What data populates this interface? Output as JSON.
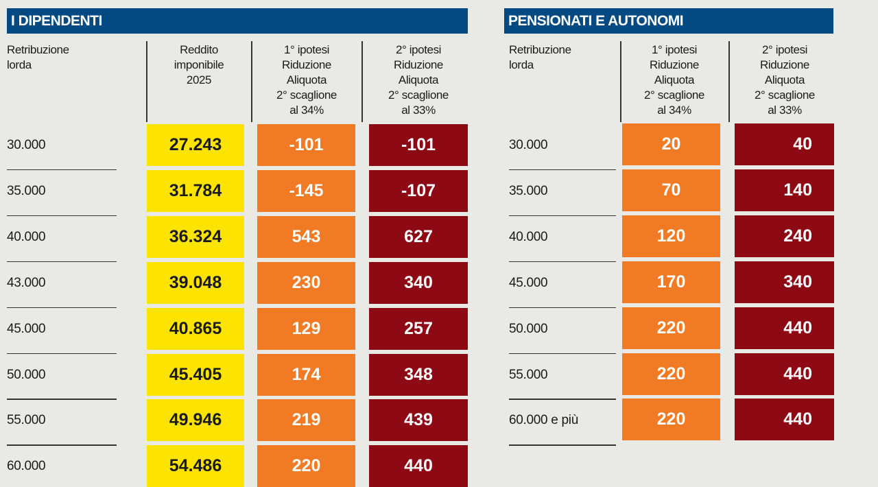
{
  "colors": {
    "header": "#034a82",
    "imponibile": "#fde300",
    "ipotesi1": "#f07b24",
    "ipotesi2": "#8d0a15"
  },
  "chart_data": {
    "type": "table",
    "tables": [
      {
        "title": "I DIPENDENTI",
        "columns": [
          "Retribuzione\nlorda",
          "Reddito\nimponibile\n2025",
          "1° ipotesi\nRiduzione\nAliquota\n2° scaglione\nal 34%",
          "2° ipotesi\nRiduzione\nAliquota\n2° scaglione\nal 33%"
        ],
        "rows": [
          [
            "30.000",
            "27.243",
            "-101",
            "-101"
          ],
          [
            "35.000",
            "31.784",
            "-145",
            "-107"
          ],
          [
            "40.000",
            "36.324",
            "543",
            "627"
          ],
          [
            "43.000",
            "39.048",
            "230",
            "340"
          ],
          [
            "45.000",
            "40.865",
            "129",
            "257"
          ],
          [
            "50.000",
            "45.405",
            "174",
            "348"
          ],
          [
            "55.000",
            "49.946",
            "219",
            "439"
          ],
          [
            "60.000",
            "54.486",
            "220",
            "440"
          ]
        ]
      },
      {
        "title": "PENSIONATI E AUTONOMI",
        "columns": [
          "Retribuzione\nlorda",
          "1° ipotesi\nRiduzione\nAliquota\n2° scaglione\nal 34%",
          "2° ipotesi\nRiduzione\nAliquota\n2° scaglione\nal 33%"
        ],
        "rows": [
          [
            "30.000",
            "20",
            "40"
          ],
          [
            "35.000",
            "70",
            "140"
          ],
          [
            "40.000",
            "120",
            "240"
          ],
          [
            "45.000",
            "170",
            "340"
          ],
          [
            "50.000",
            "220",
            "440"
          ],
          [
            "55.000",
            "220",
            "440"
          ],
          [
            "60.000 e più",
            "220",
            "440"
          ]
        ]
      }
    ]
  }
}
